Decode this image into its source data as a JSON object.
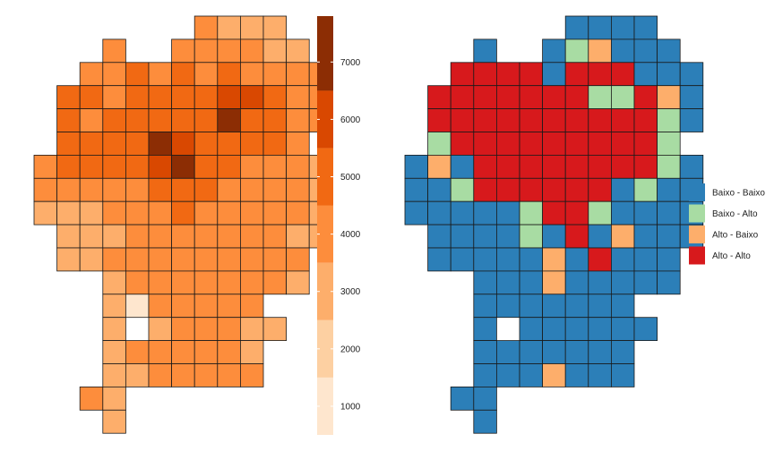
{
  "left_map": {
    "colorbar": {
      "ticks": [
        1000,
        2000,
        3000,
        4000,
        5000,
        6000,
        7000
      ],
      "min": 500,
      "max": 7800,
      "colors": [
        "#fee6ce",
        "#fdd0a2",
        "#fdae6b",
        "#fd8d3c",
        "#f16913",
        "#d94801",
        "#8c2d04"
      ],
      "breaks": [
        500,
        1500,
        2500,
        3500,
        4500,
        5500,
        6500,
        7800
      ]
    }
  },
  "right_map": {
    "legend": [
      {
        "label": "Baixo - Baixo",
        "color": "#2c7fb8",
        "key": "BB"
      },
      {
        "label": "Baixo - Alto",
        "color": "#a8dca3",
        "key": "BA"
      },
      {
        "label": "Alto - Baixo",
        "color": "#fdae6b",
        "key": "AB"
      },
      {
        "label": "Alto - Alto",
        "color": "#d7191c",
        "key": "AA"
      }
    ]
  },
  "grid": {
    "rows": [
      {
        "r": 0,
        "cells": [
          [
            7,
            3800
          ],
          [
            8,
            3300
          ],
          [
            9,
            3100
          ],
          [
            10,
            2900
          ]
        ]
      },
      {
        "r": 1,
        "cells": [
          [
            3,
            4000
          ],
          [
            6,
            3900
          ],
          [
            7,
            4000
          ],
          [
            8,
            3600
          ],
          [
            9,
            3500
          ],
          [
            10,
            3300
          ],
          [
            11,
            3100
          ]
        ]
      },
      {
        "r": 2,
        "cells": [
          [
            2,
            4100
          ],
          [
            3,
            3700
          ],
          [
            4,
            4500
          ],
          [
            5,
            4400
          ],
          [
            6,
            4600
          ],
          [
            7,
            4400
          ],
          [
            8,
            4500
          ],
          [
            9,
            4300
          ],
          [
            10,
            4200
          ],
          [
            11,
            3900
          ],
          [
            12,
            3600
          ]
        ]
      },
      {
        "r": 3,
        "cells": [
          [
            1,
            4700
          ],
          [
            2,
            4500
          ],
          [
            3,
            4400
          ],
          [
            4,
            5000
          ],
          [
            5,
            4700
          ],
          [
            6,
            4800
          ],
          [
            7,
            5200
          ],
          [
            8,
            5700
          ],
          [
            9,
            5600
          ],
          [
            10,
            4800
          ],
          [
            11,
            4300
          ],
          [
            12,
            3600
          ]
        ]
      },
      {
        "r": 4,
        "cells": [
          [
            1,
            4500
          ],
          [
            2,
            4400
          ],
          [
            3,
            4500
          ],
          [
            4,
            5200
          ],
          [
            5,
            4900
          ],
          [
            6,
            5100
          ],
          [
            7,
            5300
          ],
          [
            8,
            6800
          ],
          [
            9,
            5400
          ],
          [
            10,
            4700
          ],
          [
            11,
            4200
          ],
          [
            12,
            3500
          ]
        ]
      },
      {
        "r": 5,
        "cells": [
          [
            1,
            4600
          ],
          [
            2,
            4700
          ],
          [
            3,
            5100
          ],
          [
            4,
            5300
          ],
          [
            5,
            6800
          ],
          [
            6,
            5600
          ],
          [
            7,
            5400
          ],
          [
            8,
            5300
          ],
          [
            9,
            5000
          ],
          [
            10,
            4600
          ],
          [
            11,
            3900
          ]
        ]
      },
      {
        "r": 6,
        "cells": [
          [
            0,
            3800
          ],
          [
            1,
            4800
          ],
          [
            2,
            5200
          ],
          [
            3,
            5300
          ],
          [
            4,
            5300
          ],
          [
            5,
            5600
          ],
          [
            6,
            6600
          ],
          [
            7,
            5300
          ],
          [
            8,
            4600
          ],
          [
            9,
            4300
          ],
          [
            10,
            4200
          ],
          [
            11,
            3600
          ],
          [
            12,
            3400
          ]
        ]
      },
      {
        "r": 7,
        "cells": [
          [
            0,
            3500
          ],
          [
            1,
            3600
          ],
          [
            2,
            3900
          ],
          [
            3,
            4100
          ],
          [
            4,
            4200
          ],
          [
            5,
            5200
          ],
          [
            6,
            5300
          ],
          [
            7,
            4600
          ],
          [
            8,
            4400
          ],
          [
            9,
            3900
          ],
          [
            10,
            3800
          ],
          [
            11,
            3600
          ],
          [
            12,
            3300
          ]
        ]
      },
      {
        "r": 8,
        "cells": [
          [
            0,
            2800
          ],
          [
            1,
            3300
          ],
          [
            2,
            3400
          ],
          [
            3,
            3700
          ],
          [
            4,
            3800
          ],
          [
            5,
            4200
          ],
          [
            6,
            4800
          ],
          [
            7,
            4200
          ],
          [
            8,
            3700
          ],
          [
            9,
            3600
          ],
          [
            10,
            3600
          ],
          [
            11,
            3500
          ],
          [
            12,
            3300
          ]
        ]
      },
      {
        "r": 9,
        "cells": [
          [
            1,
            2900
          ],
          [
            2,
            3200
          ],
          [
            3,
            3400
          ],
          [
            4,
            3600
          ],
          [
            5,
            4200
          ],
          [
            6,
            4400
          ],
          [
            7,
            3700
          ],
          [
            8,
            3800
          ],
          [
            9,
            3600
          ],
          [
            10,
            3500
          ],
          [
            11,
            3400
          ],
          [
            12,
            2900
          ]
        ]
      },
      {
        "r": 10,
        "cells": [
          [
            1,
            2900
          ],
          [
            2,
            3300
          ],
          [
            3,
            3600
          ],
          [
            4,
            3800
          ],
          [
            5,
            4300
          ],
          [
            6,
            4200
          ],
          [
            7,
            3700
          ],
          [
            8,
            3700
          ],
          [
            9,
            3700
          ],
          [
            10,
            3600
          ],
          [
            11,
            3500
          ]
        ]
      },
      {
        "r": 11,
        "cells": [
          [
            3,
            3400
          ],
          [
            4,
            3600
          ],
          [
            5,
            3700
          ],
          [
            6,
            3900
          ],
          [
            7,
            3700
          ],
          [
            8,
            3600
          ],
          [
            9,
            3600
          ],
          [
            10,
            3500
          ],
          [
            11,
            2800
          ]
        ]
      },
      {
        "r": 12,
        "cells": [
          [
            3,
            2600
          ],
          [
            4,
            1400
          ],
          [
            5,
            3500
          ],
          [
            6,
            3900
          ],
          [
            7,
            3700
          ],
          [
            8,
            3600
          ],
          [
            9,
            3500
          ]
        ]
      },
      {
        "r": 13,
        "cells": [
          [
            3,
            3300
          ],
          [
            5,
            3400
          ],
          [
            6,
            3600
          ],
          [
            7,
            3500
          ],
          [
            8,
            3500
          ],
          [
            9,
            3300
          ],
          [
            10,
            2800
          ]
        ]
      },
      {
        "r": 14,
        "cells": [
          [
            3,
            3400
          ],
          [
            4,
            3600
          ],
          [
            5,
            3700
          ],
          [
            6,
            3800
          ],
          [
            7,
            3700
          ],
          [
            8,
            3600
          ],
          [
            9,
            3400
          ]
        ]
      },
      {
        "r": 15,
        "cells": [
          [
            3,
            3400
          ],
          [
            4,
            3400
          ],
          [
            5,
            3700
          ],
          [
            6,
            3900
          ],
          [
            7,
            3800
          ],
          [
            8,
            3800
          ],
          [
            9,
            3600
          ]
        ]
      },
      {
        "r": 16,
        "cells": [
          [
            2,
            3500
          ],
          [
            3,
            3400
          ]
        ]
      },
      {
        "r": 17,
        "cells": [
          [
            3,
            3300
          ]
        ]
      }
    ],
    "lisa": [
      "....BBBB.....",
      "...BA.BAABB..",
      "..AAAABAAABB.",
      ".AAAAAAABBAB.",
      ".AAAAAAAAAABB",
      ".BAAAAAAAAAB.",
      "BABAAAAAAAABB",
      "BBBAAAAAABBBB",
      "BBBBBBAAABBBB",
      ".BBBBBBAAAAB.",
      ".BBBBBBAABBB.",
      "...BBBBBBBBB.",
      "...BBBBBBBB..",
      "...B.BBBBBBB.",
      "...BBBBBBBB..",
      "...BBBBBBBB..",
      "..BBB........",
      "...B........."
    ],
    "lisa_overrides": [
      {
        "r": 1,
        "c": 4,
        "k": "BA"
      },
      {
        "r": 1,
        "c": 7,
        "k": "BA"
      },
      {
        "r": 1,
        "c": 8,
        "k": "AB"
      },
      {
        "r": 3,
        "c": 8,
        "k": "BA"
      },
      {
        "r": 3,
        "c": 9,
        "k": "BA"
      },
      {
        "r": 3,
        "c": 10,
        "k": "AA"
      },
      {
        "r": 3,
        "c": 11,
        "k": "AB"
      },
      {
        "r": 4,
        "c": 11,
        "k": "BA"
      },
      {
        "r": 5,
        "c": 1,
        "k": "BA"
      },
      {
        "r": 5,
        "c": 11,
        "k": "BA"
      },
      {
        "r": 6,
        "c": 1,
        "k": "AB"
      },
      {
        "r": 6,
        "c": 11,
        "k": "BA"
      },
      {
        "r": 7,
        "c": 2,
        "k": "BA"
      },
      {
        "r": 7,
        "c": 10,
        "k": "BA"
      },
      {
        "r": 8,
        "c": 5,
        "k": "BA"
      },
      {
        "r": 8,
        "c": 8,
        "k": "BA"
      },
      {
        "r": 9,
        "c": 5,
        "k": "BA"
      },
      {
        "r": 9,
        "c": 8,
        "k": "BB"
      },
      {
        "r": 9,
        "c": 9,
        "k": "AB"
      },
      {
        "r": 9,
        "c": 10,
        "k": "BB"
      },
      {
        "r": 10,
        "c": 6,
        "k": "AB"
      },
      {
        "r": 10,
        "c": 7,
        "k": "BB"
      },
      {
        "r": 11,
        "c": 6,
        "k": "AB"
      },
      {
        "r": 15,
        "c": 6,
        "k": "AB"
      }
    ]
  }
}
